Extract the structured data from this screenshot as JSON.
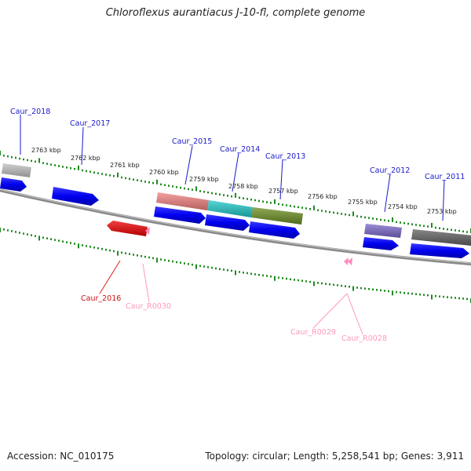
{
  "title": "Chloroflexus aurantiacus J-10-fl, complete genome",
  "footer": {
    "accession": "Accession: NC_010175",
    "summary": "Topology: circular; Length: 5,258,541 bp; Genes: 3,911"
  },
  "colors": {
    "backbone": "#8a8a8a",
    "tick": "#1f8a1f",
    "forward_label": "#1a1acc",
    "reverse_label": "#cc1111",
    "rna_label": "#ff99bb"
  },
  "scale_labels": [
    "2763 kbp",
    "2762 kbp",
    "2761 kbp",
    "2760 kbp",
    "2759 kbp",
    "2758 kbp",
    "2757 kbp",
    "2756 kbp",
    "2755 kbp",
    "2754 kbp",
    "2753 kbp"
  ],
  "features": {
    "Caur_2018": {
      "label": "Caur_2018",
      "color": "#c0c0c0"
    },
    "Caur_2015": {
      "label": "Caur_2015",
      "color": "#f08080"
    },
    "Caur_2014": {
      "label": "Caur_2014",
      "color": "#20c8c8"
    },
    "Caur_2013": {
      "label": "Caur_2013",
      "color": "#6b8e23"
    },
    "Caur_2012": {
      "label": "Caur_2012",
      "color": "#7b68c8"
    },
    "Caur_2011": {
      "label": "Caur_2011",
      "color": "#606060"
    },
    "Caur_2017": {
      "label": "Caur_2017"
    },
    "Caur_2016": {
      "label": "Caur_2016",
      "color": "#ee0000"
    },
    "Caur_R0030": {
      "label": "Caur_R0030",
      "color": "#ff88bb"
    },
    "Caur_R0029": {
      "label": "Caur_R0029"
    },
    "Caur_R0028": {
      "label": "Caur_R0028"
    }
  }
}
